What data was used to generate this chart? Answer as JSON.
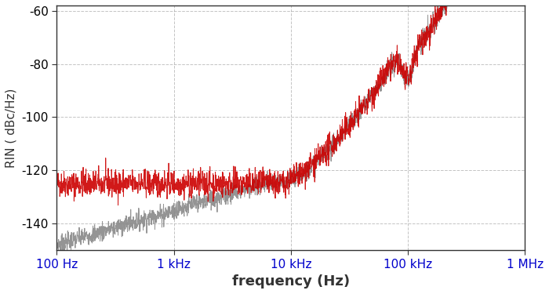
{
  "title": "",
  "xlabel": "frequency (Hz)",
  "ylabel": "RIN ( dBc/Hz)",
  "xlim": [
    100,
    1000000
  ],
  "ylim": [
    -150,
    -58
  ],
  "yticks": [
    -60,
    -80,
    -100,
    -120,
    -140
  ],
  "xtick_labels": [
    "100 Hz",
    "1 kHz",
    "10 kHz",
    "100 kHz",
    "1 MHz"
  ],
  "xtick_positions": [
    100,
    1000,
    10000,
    100000,
    1000000
  ],
  "grid_color": "#aaaaaa",
  "background_color": "#ffffff",
  "red_color": "#cc0000",
  "gray_color": "#888888",
  "peak_freq": 100000,
  "noise_floor_red": -125,
  "noise_floor_gray_start": -148,
  "seed_red": 42,
  "seed_gray": 7,
  "n_points": 2000
}
